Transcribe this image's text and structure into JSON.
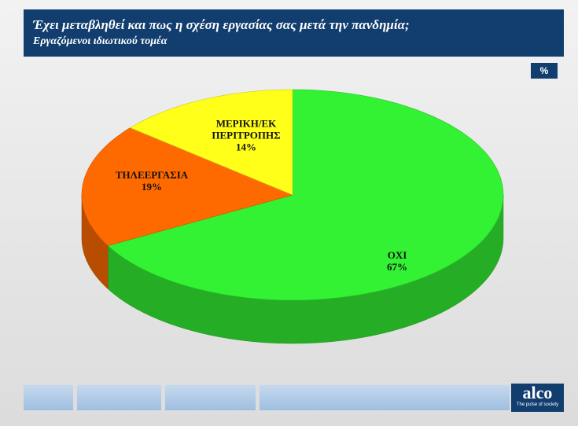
{
  "chart_data": {
    "type": "pie3d",
    "title": "Έχει μεταβληθεί και πως η σχέση εργασίας σας μετά την πανδημία;",
    "subtitle": "Εργαζόμενοι ιδιωτικού τομέα",
    "unit_badge": "%",
    "categories": [
      "ΟΧΙ",
      "ΤΗΛΕΕΡΓΑΣΙΑ",
      "ΜΕΡΙΚΗ/ΕΚ ΠΕΡΙΤΡΟΠΗΣ"
    ],
    "values": [
      67,
      19,
      14
    ],
    "value_labels": [
      "67%",
      "19%",
      "14%"
    ],
    "colors": [
      "#33f233",
      "#ff6a00",
      "#ffff1a"
    ]
  },
  "footer": {
    "logo": "alco",
    "tagline": "The pulse of society"
  }
}
